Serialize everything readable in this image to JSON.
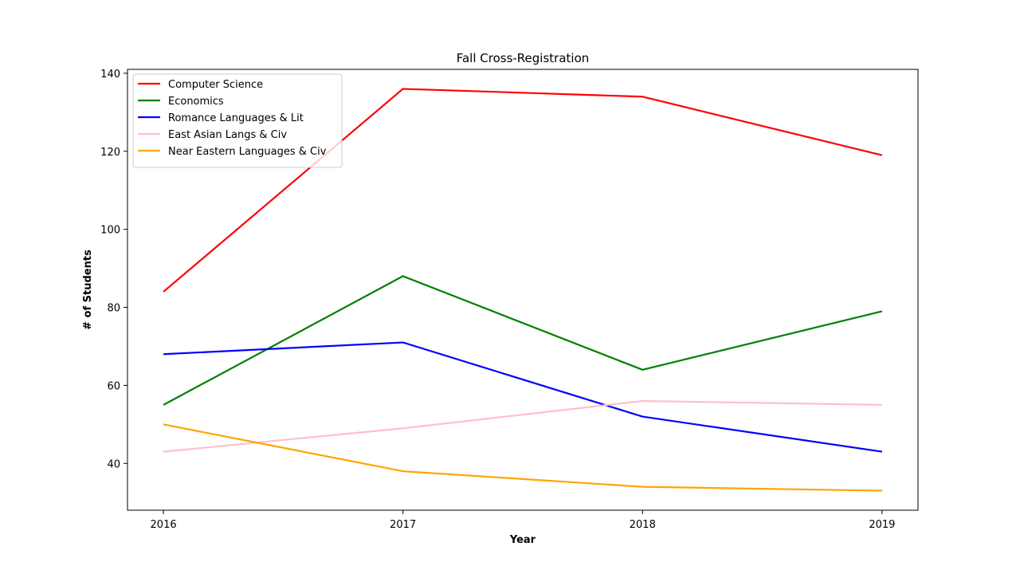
{
  "chart_data": {
    "type": "line",
    "title": "Fall Cross-Registration",
    "xlabel": "Year",
    "ylabel": "# of Students",
    "x": [
      2016,
      2017,
      2018,
      2019
    ],
    "x_tick_labels": [
      "2016",
      "2017",
      "2018",
      "2019"
    ],
    "ylim": [
      28,
      141
    ],
    "y_ticks": [
      40,
      60,
      80,
      100,
      120,
      140
    ],
    "grid": false,
    "legend_position": "top-left",
    "series": [
      {
        "name": "Computer Science",
        "color": "#ff0000",
        "values": [
          84,
          136,
          134,
          119
        ]
      },
      {
        "name": "Economics",
        "color": "#008000",
        "values": [
          55,
          88,
          64,
          79
        ]
      },
      {
        "name": "Romance Languages & Lit",
        "color": "#0000ff",
        "values": [
          68,
          71,
          52,
          43
        ]
      },
      {
        "name": "East Asian Langs & Civ",
        "color": "#ffc0cb",
        "values": [
          43,
          49,
          56,
          55
        ]
      },
      {
        "name": "Near Eastern Languages & Civ",
        "color": "#ffa500",
        "values": [
          50,
          38,
          34,
          33
        ]
      }
    ]
  }
}
